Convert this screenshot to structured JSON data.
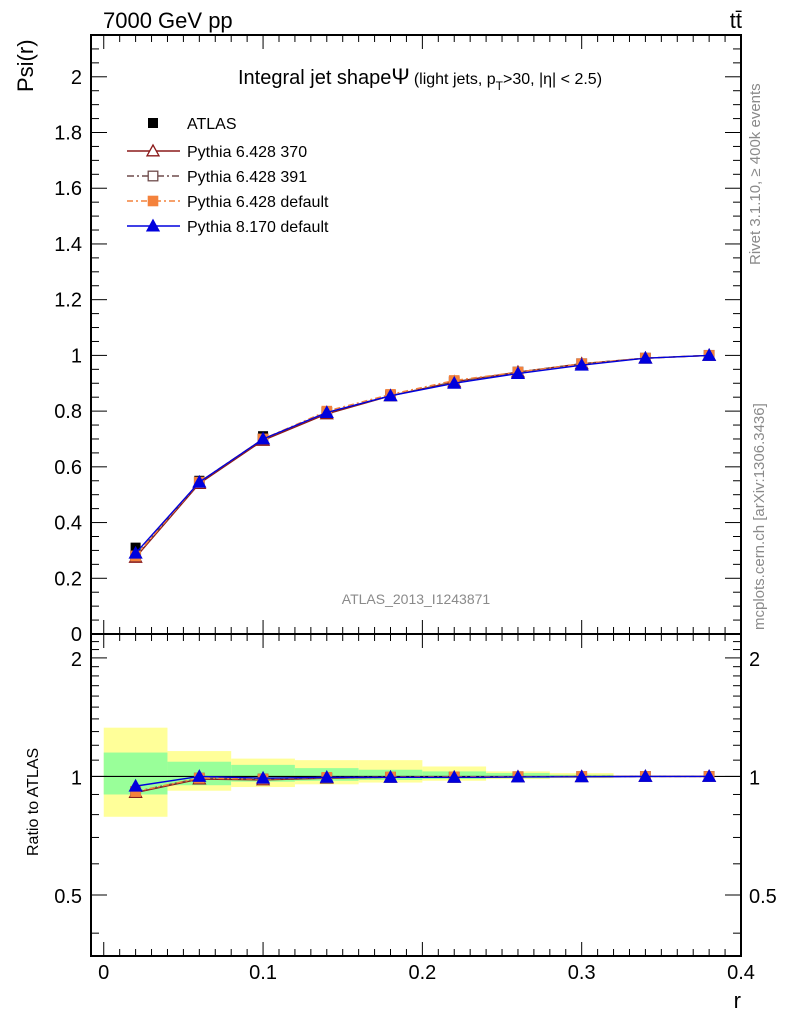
{
  "header": {
    "left_label": "7000 GeV pp",
    "right_label": "tt̄"
  },
  "side_texts": {
    "rivet": "Rivet 3.1.10, ≥ 400k events",
    "mcplots": "mcplots.cern.ch [arXiv:1306.3436]"
  },
  "watermark": "ATLAS_2013_I1243871",
  "chart_data": {
    "type": "line",
    "title": {
      "main": "Integral jet shape",
      "symbol": "Ψ",
      "cut_open": "(light jets, p",
      "cut_sub": "T",
      "cut_close": ">30, |η| < 2.5)"
    },
    "xlabel": "r",
    "ylabel": "Psi(r)",
    "ratio_ylabel": "Ratio to ATLAS",
    "xlim": [
      -0.008,
      0.4
    ],
    "ylim": [
      0,
      2.15
    ],
    "ratio_ylim": [
      0.35,
      2.3
    ],
    "grid": false,
    "legend_position": "top-left",
    "x_ticks": [
      "0",
      "0.1",
      "0.2",
      "0.3",
      "0.4"
    ],
    "x_tick_values": [
      0,
      0.1,
      0.2,
      0.3,
      0.4
    ],
    "y_ticks": [
      "0",
      "0.2",
      "0.4",
      "0.6",
      "0.8",
      "1",
      "1.2",
      "1.4",
      "1.6",
      "1.8",
      "2"
    ],
    "y_tick_values": [
      0,
      0.2,
      0.4,
      0.6,
      0.8,
      1,
      1.2,
      1.4,
      1.6,
      1.8,
      2
    ],
    "ratio_ticks": [
      "0.5",
      "1",
      "2"
    ],
    "ratio_tick_values": [
      0.5,
      1,
      2
    ],
    "x": [
      0.02,
      0.06,
      0.1,
      0.14,
      0.18,
      0.22,
      0.26,
      0.3,
      0.34,
      0.38
    ],
    "data": {
      "name": "ATLAS",
      "values": [
        0.31,
        0.55,
        0.71,
        0.8,
        0.86,
        0.91,
        0.94,
        0.97,
        0.99,
        1.0
      ]
    },
    "series": [
      {
        "name": "Pythia 6.428 370",
        "color": "#8b1a1a",
        "marker": "triangle-open",
        "dash": "",
        "values": [
          0.275,
          0.54,
          0.695,
          0.79,
          0.855,
          0.905,
          0.94,
          0.97,
          0.99,
          1.0
        ],
        "ratio": [
          0.91,
          0.985,
          0.98,
          0.99,
          0.995,
          0.995,
          0.998,
          0.999,
          1.0,
          1.0
        ]
      },
      {
        "name": "Pythia 6.428 391",
        "color": "#6e4b4b",
        "marker": "square-open",
        "dash": "7,3,2,3",
        "values": [
          0.28,
          0.545,
          0.7,
          0.795,
          0.855,
          0.905,
          0.94,
          0.97,
          0.99,
          1.0
        ],
        "ratio": [
          0.915,
          0.99,
          0.985,
          0.99,
          0.995,
          0.995,
          0.998,
          0.999,
          1.0,
          1.0
        ]
      },
      {
        "name": "Pythia 6.428 default",
        "color": "#f4823c",
        "marker": "square-filled",
        "dash": "6,3,2,3",
        "values": [
          0.28,
          0.545,
          0.7,
          0.8,
          0.86,
          0.91,
          0.94,
          0.97,
          0.99,
          1.0
        ],
        "ratio": [
          0.915,
          0.99,
          0.985,
          0.995,
          0.997,
          0.998,
          0.999,
          1.0,
          1.0,
          1.0
        ]
      },
      {
        "name": "Pythia 8.170 default",
        "color": "#0000dd",
        "marker": "triangle-filled",
        "dash": "",
        "values": [
          0.29,
          0.545,
          0.7,
          0.795,
          0.855,
          0.9,
          0.935,
          0.965,
          0.99,
          1.0
        ],
        "ratio": [
          0.945,
          1.0,
          0.99,
          0.995,
          0.995,
          0.995,
          0.997,
          0.998,
          1.0,
          1.0
        ]
      }
    ],
    "ratio_bands": {
      "bin_edges": [
        0,
        0.04,
        0.08,
        0.12,
        0.16,
        0.2,
        0.24,
        0.28,
        0.32,
        0.36,
        0.4
      ],
      "yellow_low": [
        0.79,
        0.92,
        0.94,
        0.955,
        0.965,
        0.975,
        0.985,
        0.99,
        1.0,
        1.0
      ],
      "yellow_high": [
        1.33,
        1.16,
        1.11,
        1.1,
        1.1,
        1.06,
        1.03,
        1.02,
        1.0,
        1.0
      ],
      "green_low": [
        0.9,
        0.95,
        0.97,
        0.975,
        0.98,
        0.985,
        0.99,
        0.995,
        1.0,
        1.0
      ],
      "green_high": [
        1.15,
        1.09,
        1.07,
        1.05,
        1.04,
        1.03,
        1.02,
        1.01,
        1.0,
        1.0
      ]
    }
  }
}
